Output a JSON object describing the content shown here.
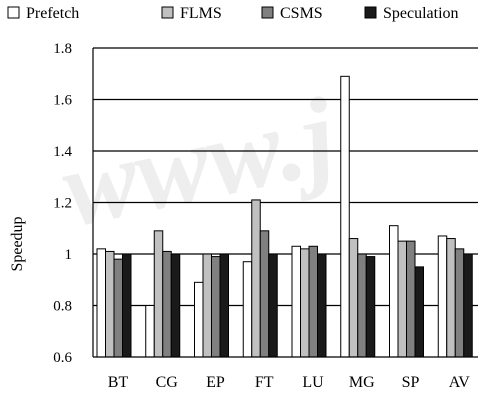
{
  "chart_data": {
    "type": "bar",
    "categories": [
      "BT",
      "CG",
      "EP",
      "FT",
      "LU",
      "MG",
      "SP",
      "AV"
    ],
    "series": [
      {
        "name": "Prefetch",
        "color": "#ffffff",
        "values": [
          1.02,
          0.8,
          0.89,
          0.97,
          1.03,
          1.69,
          1.11,
          1.07
        ]
      },
      {
        "name": "FLMS",
        "color": "#c0c0c0",
        "values": [
          1.01,
          1.09,
          1.0,
          1.21,
          1.02,
          1.06,
          1.05,
          1.06
        ]
      },
      {
        "name": "CSMS",
        "color": "#808080",
        "values": [
          0.98,
          1.01,
          0.99,
          1.09,
          1.03,
          1.0,
          1.05,
          1.02
        ]
      },
      {
        "name": "Speculation",
        "color": "#1a1a1a",
        "values": [
          1.0,
          1.0,
          1.0,
          1.0,
          1.0,
          0.99,
          0.95,
          1.0
        ]
      }
    ],
    "ylabel": "Speedup",
    "xlabel": "",
    "ylim": [
      0.6,
      1.8
    ],
    "yticks": [
      "0.6",
      "0.8",
      "1",
      "1.2",
      "1.4",
      "1.6",
      "1.8"
    ],
    "grid": true,
    "legend": "top"
  },
  "watermark": "www.j"
}
